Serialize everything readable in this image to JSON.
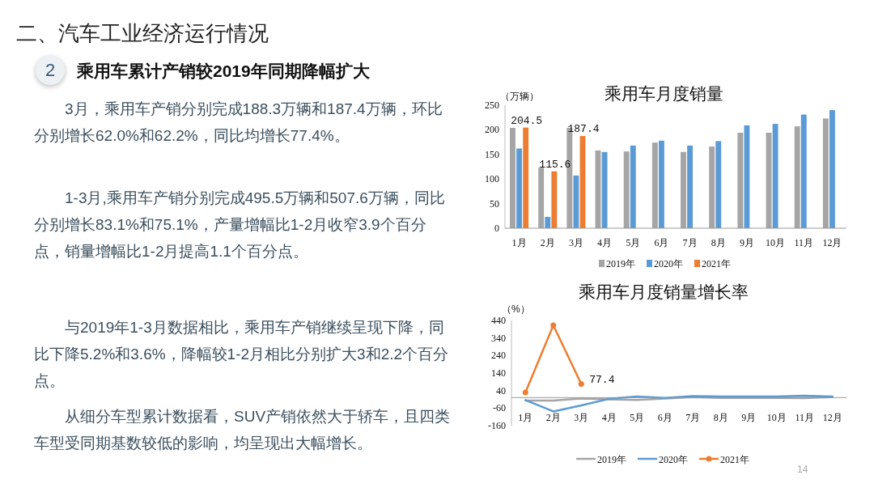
{
  "chart_data": [
    {
      "type": "other",
      "title": "二、汽车工业经济运行情况",
      "subtitle": "乘用车累计产销较2019年同期降幅扩大",
      "annotations": [
        "2",
        "3月，乘用车产销分别完成188.3万辆和187.4万辆，环比分别增长62.0%和62.2%，同比均增长77.4%。",
        "1-3月,乘用车产销分别完成495.5万辆和507.6万辆，同比分别增长83.1%和75.1%，产量增幅比1-2月收窄3.9个百分点，销量增幅比1-2月提高1.1个百分点。",
        "与2019年1-3月数据相比，乘用车产销继续呈现下降，同比下降5.2%和3.6%，降幅较1-2月相比分别扩大3和2.2个百分点。",
        "从细分车型累计数据看，SUV产销依然大于轿车，且四类车型受同期基数较低的影响，均呈现出大幅增长。",
        "14"
      ]
    },
    {
      "type": "bar",
      "title": "乘用车月度销量",
      "ylabel": "（万辆）",
      "categories": [
        "1月",
        "2月",
        "3月",
        "4月",
        "5月",
        "6月",
        "7月",
        "8月",
        "9月",
        "10月",
        "11月",
        "12月"
      ],
      "ylim": [
        0,
        250
      ],
      "yticks": [
        0,
        50,
        100,
        150,
        200,
        250
      ],
      "grid": false,
      "legend": "bottom",
      "series": [
        {
          "name": "2019年",
          "color": "#a5a5a5",
          "values": [
            204,
            123,
            204,
            158,
            156,
            174,
            155,
            166,
            194,
            194,
            207,
            223
          ]
        },
        {
          "name": "2020年",
          "color": "#5b9bd5",
          "values": [
            162,
            23,
            107,
            155,
            168,
            178,
            168,
            177,
            209,
            212,
            231,
            240
          ]
        },
        {
          "name": "2021年",
          "color": "#ed7d31",
          "values": [
            204.5,
            115.6,
            187.4,
            null,
            null,
            null,
            null,
            null,
            null,
            null,
            null,
            null
          ],
          "value_labels": [
            "204.5",
            "115.6",
            "187.4",
            null,
            null,
            null,
            null,
            null,
            null,
            null,
            null,
            null
          ]
        }
      ]
    },
    {
      "type": "line",
      "title": "乘用车月度销量增长率",
      "ylabel": "（%）",
      "categories": [
        "1月",
        "2月",
        "3月",
        "4月",
        "5月",
        "6月",
        "7月",
        "8月",
        "9月",
        "10月",
        "11月",
        "12月"
      ],
      "ylim": [
        -160,
        440
      ],
      "yticks": [
        -160,
        -60,
        40,
        140,
        240,
        340,
        440
      ],
      "grid": false,
      "legend": "bottom",
      "series": [
        {
          "name": "2019年",
          "color": "#a5a5a5",
          "marker": "none",
          "values": [
            -17,
            -17,
            -5,
            -10,
            -13,
            -5,
            3,
            -2,
            -2,
            -2,
            -3,
            3
          ]
        },
        {
          "name": "2020年",
          "color": "#5b9bd5",
          "marker": "none",
          "values": [
            -14,
            -79,
            -45,
            -7,
            6,
            -2,
            9,
            6,
            6,
            6,
            11,
            6
          ]
        },
        {
          "name": "2021年",
          "color": "#ed7d31",
          "marker": "circle",
          "values": [
            29,
            412,
            77.4,
            null,
            null,
            null,
            null,
            null,
            null,
            null,
            null,
            null
          ],
          "value_labels": [
            null,
            null,
            "77.4",
            null,
            null,
            null,
            null,
            null,
            null,
            null,
            null,
            null
          ]
        }
      ]
    }
  ]
}
